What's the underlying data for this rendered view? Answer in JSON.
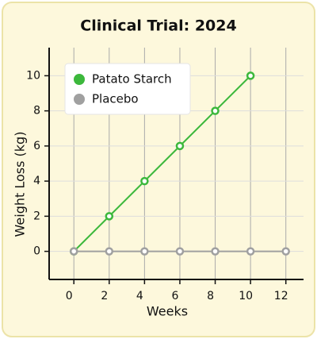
{
  "chart_data": {
    "type": "line",
    "title": "Clinical Trial: 2024",
    "x_label": "Weeks",
    "y_label": "Weight Loss (kg)",
    "series": [
      {
        "name": "Patato Starch",
        "color": "#3cb83c",
        "x": [
          0,
          2,
          4,
          6,
          8,
          10
        ],
        "values": [
          0,
          2,
          4,
          6,
          8,
          10
        ]
      },
      {
        "name": "Placebo",
        "color": "#a0a0a0",
        "x": [
          0,
          2,
          4,
          6,
          8,
          10,
          12
        ],
        "values": [
          0,
          0,
          0,
          0,
          0,
          0,
          0
        ]
      }
    ],
    "xlim": [
      -1.4,
      13
    ],
    "xticks": [
      0,
      2,
      4,
      6,
      8,
      10,
      12
    ],
    "ylim": [
      -1.6,
      11.6
    ],
    "yticks": [
      0,
      2,
      4,
      6,
      8,
      10
    ],
    "grid": true,
    "legend": "upper left"
  }
}
